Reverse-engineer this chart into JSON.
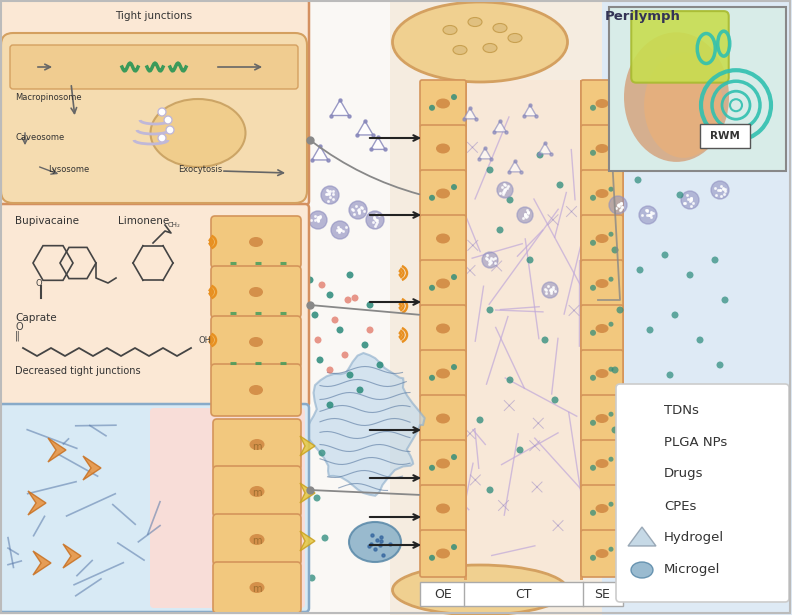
{
  "perilymph_label": "Perilymph",
  "rwm_label": "RWM",
  "oe_label": "OE",
  "ct_label": "CT",
  "se_label": "SE",
  "tight_junctions_label": "Tight junctions",
  "macropinosome_label": "Macropinosome",
  "caveosome_label": "Caveosome",
  "lysosome_label": "Lysosome",
  "exocytosis_label": "Exocytosis",
  "bupivacaine_label": "Bupivacaine",
  "limonene_label": "Limonene",
  "caprate_label": "Caprate",
  "decreased_tj_label": "Decreased tight junctions",
  "legend_items": [
    "TDNs",
    "PLGA NPs",
    "Drugs",
    "CPEs",
    "Hydrogel",
    "Microgel"
  ],
  "main_bg": "#faf5f0",
  "blue_bg": "#deeaf5",
  "panel1_bg": "#f9e8dc",
  "panel2_bg": "#f9e8dc",
  "panel3_bg": "#deeaf5",
  "cell_fill": "#f0c87a",
  "cell_edge": "#d4915a",
  "ct_fill": "#f8ede0",
  "tdn_color": "#8888bb",
  "plga_color": "#9090c0",
  "drug_color": "#2a8a7a",
  "cpe_color": "#e07060",
  "hydrogel_fill": "#b8d0e0",
  "microgel_fill": "#88b0c8",
  "arrow_color": "#222222",
  "green_tj": "#3a9a5a",
  "sound_color": "#e89020",
  "gray_line": "#888888",
  "purple_fiber": "#b0a0d0"
}
